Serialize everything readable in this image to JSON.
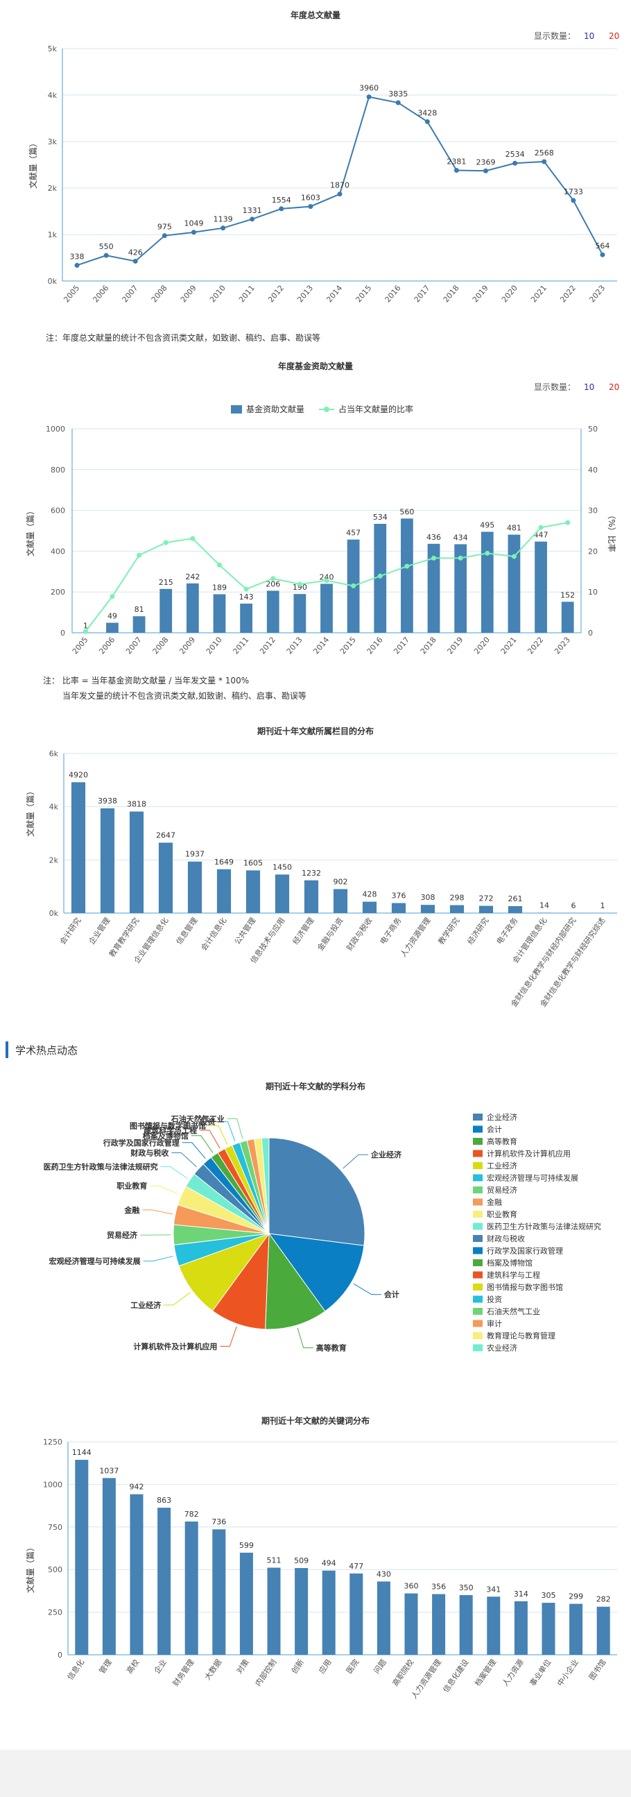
{
  "colors": {
    "axis": "#4a9fd5",
    "bar": "#4682b4",
    "line": "#3b7ab0",
    "ratio": "#7ef0b4",
    "count10": "#2a2ab0",
    "count20": "#e02020"
  },
  "count_selector": {
    "label": "显示数量：",
    "options": [
      "10",
      "20"
    ]
  },
  "chart1": {
    "chart_data": {
      "type": "line",
      "title": "年度总文献量",
      "ylabel": "文献量（篇）",
      "x": [
        "2005",
        "2006",
        "2007",
        "2008",
        "2009",
        "2010",
        "2011",
        "2012",
        "2013",
        "2014",
        "2015",
        "2016",
        "2017",
        "2018",
        "2019",
        "2020",
        "2021",
        "2022",
        "2023"
      ],
      "series": [
        {
          "values": [
            338,
            550,
            426,
            975,
            1049,
            1139,
            1331,
            1554,
            1603,
            1870,
            3960,
            3835,
            3428,
            2381,
            2369,
            2534,
            2568,
            1733,
            564
          ]
        }
      ],
      "ylim": [
        0,
        5000
      ],
      "yticks": [
        "0k",
        "1k",
        "2k",
        "3k",
        "4k",
        "5k"
      ]
    },
    "note": "注：年度总文献量的统计不包含资讯类文献，如致谢、稿约、启事、勘误等"
  },
  "chart2": {
    "chart_data": {
      "type": "bar",
      "title": "年度基金资助文献量",
      "ylabel": "文献量（篇）",
      "y2label": "（%）比率",
      "x": [
        "2005",
        "2006",
        "2007",
        "2008",
        "2009",
        "2010",
        "2011",
        "2012",
        "2013",
        "2014",
        "2015",
        "2016",
        "2017",
        "2018",
        "2019",
        "2020",
        "2021",
        "2022",
        "2023"
      ],
      "series": [
        {
          "name": "基金资助文献量",
          "type": "bar",
          "values": [
            1,
            49,
            81,
            215,
            242,
            189,
            143,
            206,
            190,
            240,
            457,
            534,
            560,
            436,
            434,
            495,
            481,
            447,
            152
          ]
        },
        {
          "name": "占当年文献量的比率",
          "type": "line",
          "values": [
            0.3,
            8.9,
            19.0,
            22.1,
            23.1,
            16.6,
            10.7,
            13.3,
            11.9,
            12.8,
            11.5,
            13.9,
            16.3,
            18.3,
            18.3,
            19.5,
            18.7,
            25.8,
            27.0
          ]
        }
      ],
      "ylim": [
        0,
        1000
      ],
      "y2lim": [
        0,
        50
      ],
      "yticks": [
        "0",
        "200",
        "400",
        "600",
        "800",
        "1000"
      ],
      "y2ticks": [
        "0",
        "10",
        "20",
        "30",
        "40",
        "50"
      ]
    },
    "note_line1": "注：  比率 = 当年基金资助文献量 / 当年发文量 * 100%",
    "note_line2": "当年发文量的统计不包含资讯类文献,如致谢、稿约、启事、勘误等"
  },
  "chart3": {
    "chart_data": {
      "type": "bar",
      "title": "期刊近十年文献所属栏目的分布",
      "ylabel": "文献量（篇）",
      "categories": [
        "会计研究",
        "企业管理",
        "教育教学研究",
        "企业管理信息化",
        "信息管理",
        "会计信息化",
        "公共管理",
        "信息技术与应用",
        "经济管理",
        "金融与投资",
        "财政与税收",
        "电子商务",
        "人力资源管理",
        "教学研究",
        "经济研究",
        "电子政务",
        "会计管理信息化",
        "金财信息化教学与财经内部研究",
        "金财信息化教学与财经研究综述"
      ],
      "values": [
        4920,
        3938,
        3818,
        2647,
        1937,
        1649,
        1605,
        1450,
        1232,
        902,
        428,
        376,
        308,
        298,
        272,
        261,
        14,
        6,
        1
      ],
      "ylim": [
        0,
        6000
      ],
      "yticks": [
        "0k",
        "2k",
        "4k",
        "6k"
      ]
    }
  },
  "section_title": "学术热点动态",
  "chart4": {
    "chart_data": {
      "type": "pie",
      "title": "期刊近十年文献的学科分布",
      "slices": [
        {
          "label": "企业经济",
          "value": 1200,
          "color": "#4682b4"
        },
        {
          "label": "会计",
          "value": 580,
          "color": "#0a7fc4"
        },
        {
          "label": "高等教育",
          "value": 470,
          "color": "#4aaa3c"
        },
        {
          "label": "计算机软件及计算机应用",
          "value": 420,
          "color": "#ec5522"
        },
        {
          "label": "工业经济",
          "value": 420,
          "color": "#d8dc10"
        },
        {
          "label": "宏观经济管理与可持续发展",
          "value": 160,
          "color": "#26bfdc"
        },
        {
          "label": "贸易经济",
          "value": 150,
          "color": "#6ed478"
        },
        {
          "label": "金融",
          "value": 150,
          "color": "#f59a58"
        },
        {
          "label": "职业教育",
          "value": 150,
          "color": "#f8ef7a"
        },
        {
          "label": "医药卫生方针政策与法律法规研究",
          "value": 110,
          "color": "#72ecd0"
        },
        {
          "label": "财政与税收",
          "value": 100,
          "color": "#4682b4"
        },
        {
          "label": "行政学及国家行政管理",
          "value": 75,
          "color": "#0a7fc4"
        },
        {
          "label": "档案及博物馆",
          "value": 60,
          "color": "#4aaa3c"
        },
        {
          "label": "建筑科学与工程",
          "value": 60,
          "color": "#ec5522"
        },
        {
          "label": "图书情报与数字图书馆",
          "value": 60,
          "color": "#d8dc10"
        },
        {
          "label": "投资",
          "value": 60,
          "color": "#26bfdc"
        },
        {
          "label": "石油天然气工业",
          "value": 55,
          "color": "#6ed478"
        },
        {
          "label": "审计",
          "value": 55,
          "color": "#f59a58"
        },
        {
          "label": "教育理论与教育管理",
          "value": 55,
          "color": "#f8ef7a"
        },
        {
          "label": "农业经济",
          "value": 55,
          "color": "#72ecd0"
        }
      ],
      "outside_labels": [
        "企业经济",
        "会计",
        "高等教育",
        "计算机软件及计算机应用",
        "工业经济",
        "宏观经济管理与可持续发展",
        "贸易经济",
        "金融",
        "职业教育",
        "医药卫生方针政策与法律法规研究",
        "财政与税收",
        "行政学及国家行政管理",
        "档案及博物馆",
        "建筑科学与工程",
        "图书情报与数字图书馆",
        "投资",
        "石油天然气工业"
      ],
      "legend_position": "right"
    }
  },
  "chart5": {
    "chart_data": {
      "type": "bar",
      "title": "期刊近十年文献的关键词分布",
      "ylabel": "文献量（篇）",
      "categories": [
        "信息化",
        "管理",
        "高校",
        "企业",
        "财务管理",
        "大数据",
        "对策",
        "内部控制",
        "创新",
        "应用",
        "医院",
        "问题",
        "高职院校",
        "人力资源管理",
        "信息化建设",
        "档案管理",
        "人力资源",
        "事业单位",
        "中小企业",
        "图书馆"
      ],
      "values": [
        1144,
        1037,
        942,
        863,
        782,
        736,
        599,
        511,
        509,
        494,
        477,
        430,
        360,
        356,
        350,
        341,
        314,
        305,
        299,
        282
      ],
      "ylim": [
        0,
        1250
      ],
      "yticks": [
        "0",
        "250",
        "500",
        "750",
        "1000",
        "1250"
      ]
    }
  }
}
